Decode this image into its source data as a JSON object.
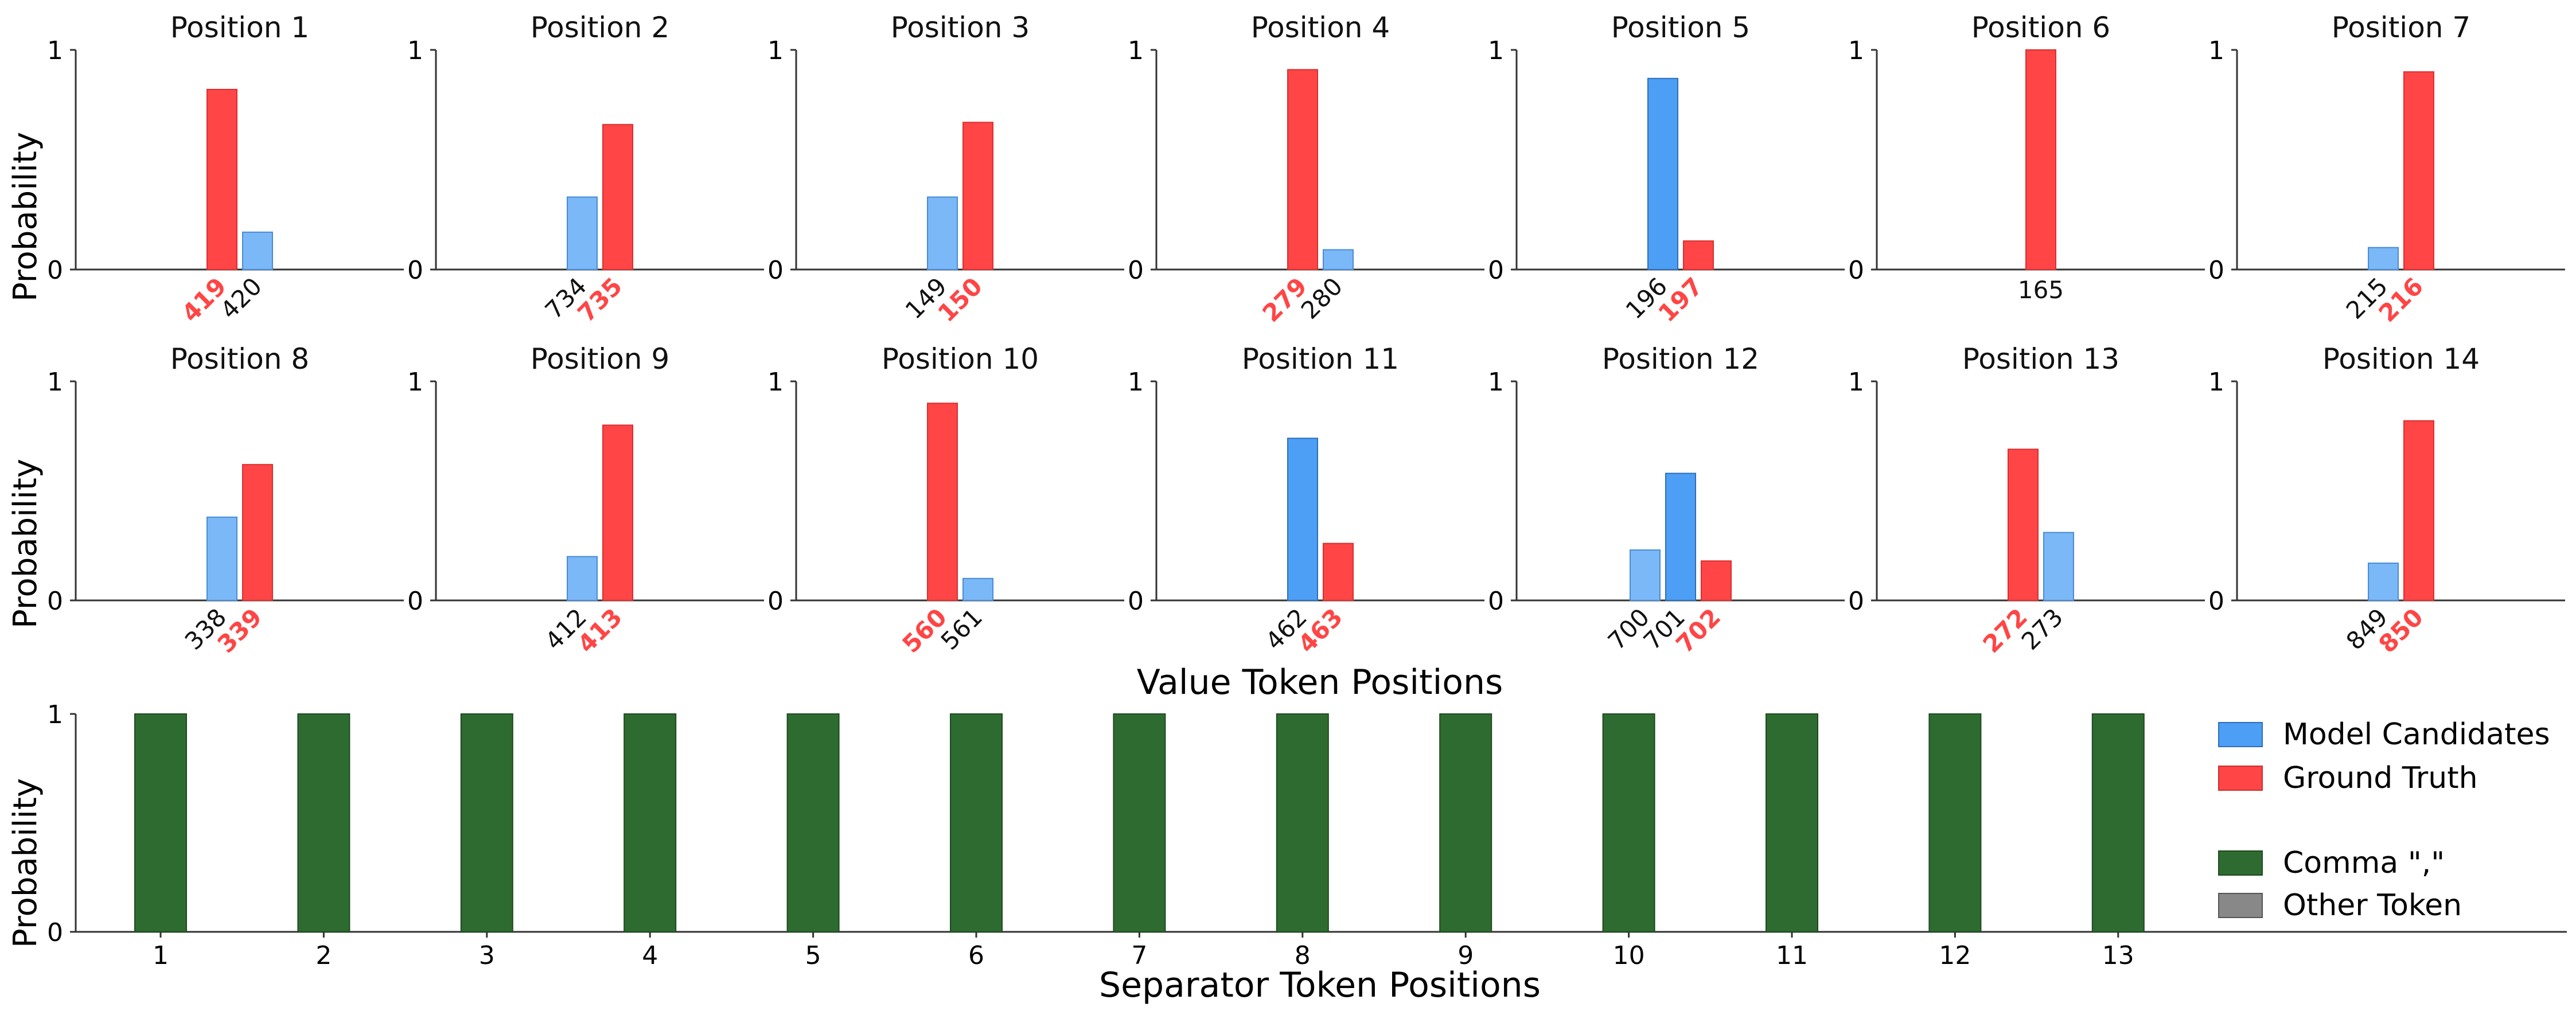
{
  "figure": {
    "value_xlabel": "Value Token Positions",
    "separator_xlabel": "Separator Token Positions",
    "ylabel": "Probability",
    "ytick_low": "0",
    "ytick_high": "1"
  },
  "colors": {
    "candidate": "#4c9ff5",
    "candidate_light": "#7ab8f7",
    "ground_truth": "#ff4545",
    "comma": "#2e6b30",
    "other": "#888888",
    "axis": "#333333"
  },
  "legend": {
    "model_candidates": "Model Candidates",
    "ground_truth": "Ground Truth",
    "comma": "Comma \",\"",
    "other_token": "Other Token"
  },
  "chart_data": [
    {
      "type": "bar",
      "title": "Position 1",
      "ylim": [
        0,
        1
      ],
      "bars": [
        {
          "label": "419",
          "value": 0.82,
          "truth": true
        },
        {
          "label": "420",
          "value": 0.17,
          "truth": false
        }
      ]
    },
    {
      "type": "bar",
      "title": "Position 2",
      "ylim": [
        0,
        1
      ],
      "bars": [
        {
          "label": "734",
          "value": 0.33,
          "truth": false
        },
        {
          "label": "735",
          "value": 0.66,
          "truth": true
        }
      ]
    },
    {
      "type": "bar",
      "title": "Position 3",
      "ylim": [
        0,
        1
      ],
      "bars": [
        {
          "label": "149",
          "value": 0.33,
          "truth": false
        },
        {
          "label": "150",
          "value": 0.67,
          "truth": true
        }
      ]
    },
    {
      "type": "bar",
      "title": "Position 4",
      "ylim": [
        0,
        1
      ],
      "bars": [
        {
          "label": "279",
          "value": 0.91,
          "truth": true
        },
        {
          "label": "280",
          "value": 0.09,
          "truth": false
        }
      ]
    },
    {
      "type": "bar",
      "title": "Position 5",
      "ylim": [
        0,
        1
      ],
      "bars": [
        {
          "label": "196",
          "value": 0.87,
          "truth": false,
          "top": true
        },
        {
          "label": "197",
          "value": 0.13,
          "truth": true
        }
      ]
    },
    {
      "type": "bar",
      "title": "Position 6",
      "ylim": [
        0,
        1
      ],
      "bars": [
        {
          "label": "165",
          "value": 1.0,
          "truth": true,
          "plain": true
        }
      ]
    },
    {
      "type": "bar",
      "title": "Position 7",
      "ylim": [
        0,
        1
      ],
      "bars": [
        {
          "label": "215",
          "value": 0.1,
          "truth": false
        },
        {
          "label": "216",
          "value": 0.9,
          "truth": true
        }
      ]
    },
    {
      "type": "bar",
      "title": "Position 8",
      "ylim": [
        0,
        1
      ],
      "bars": [
        {
          "label": "338",
          "value": 0.38,
          "truth": false
        },
        {
          "label": "339",
          "value": 0.62,
          "truth": true
        }
      ]
    },
    {
      "type": "bar",
      "title": "Position 9",
      "ylim": [
        0,
        1
      ],
      "bars": [
        {
          "label": "412",
          "value": 0.2,
          "truth": false
        },
        {
          "label": "413",
          "value": 0.8,
          "truth": true
        }
      ]
    },
    {
      "type": "bar",
      "title": "Position 10",
      "ylim": [
        0,
        1
      ],
      "bars": [
        {
          "label": "560",
          "value": 0.9,
          "truth": true
        },
        {
          "label": "561",
          "value": 0.1,
          "truth": false
        }
      ]
    },
    {
      "type": "bar",
      "title": "Position 11",
      "ylim": [
        0,
        1
      ],
      "bars": [
        {
          "label": "462",
          "value": 0.74,
          "truth": false,
          "top": true
        },
        {
          "label": "463",
          "value": 0.26,
          "truth": true
        }
      ]
    },
    {
      "type": "bar",
      "title": "Position 12",
      "ylim": [
        0,
        1
      ],
      "bars": [
        {
          "label": "700",
          "value": 0.23,
          "truth": false
        },
        {
          "label": "701",
          "value": 0.58,
          "truth": false,
          "top": true
        },
        {
          "label": "702",
          "value": 0.18,
          "truth": true
        }
      ]
    },
    {
      "type": "bar",
      "title": "Position 13",
      "ylim": [
        0,
        1
      ],
      "bars": [
        {
          "label": "272",
          "value": 0.69,
          "truth": true
        },
        {
          "label": "273",
          "value": 0.31,
          "truth": false
        }
      ]
    },
    {
      "type": "bar",
      "title": "Position 14",
      "ylim": [
        0,
        1
      ],
      "bars": [
        {
          "label": "849",
          "value": 0.17,
          "truth": false
        },
        {
          "label": "850",
          "value": 0.82,
          "truth": true
        }
      ]
    },
    {
      "type": "bar",
      "title": "",
      "xlabel": "Separator Token Positions",
      "ylabel": "Probability",
      "ylim": [
        0,
        1
      ],
      "categories": [
        "1",
        "2",
        "3",
        "4",
        "5",
        "6",
        "7",
        "8",
        "9",
        "10",
        "11",
        "12",
        "13"
      ],
      "series": [
        {
          "name": "Comma \",\"",
          "values": [
            1,
            1,
            1,
            1,
            1,
            1,
            1,
            1,
            1,
            1,
            1,
            1,
            1
          ]
        }
      ]
    }
  ]
}
